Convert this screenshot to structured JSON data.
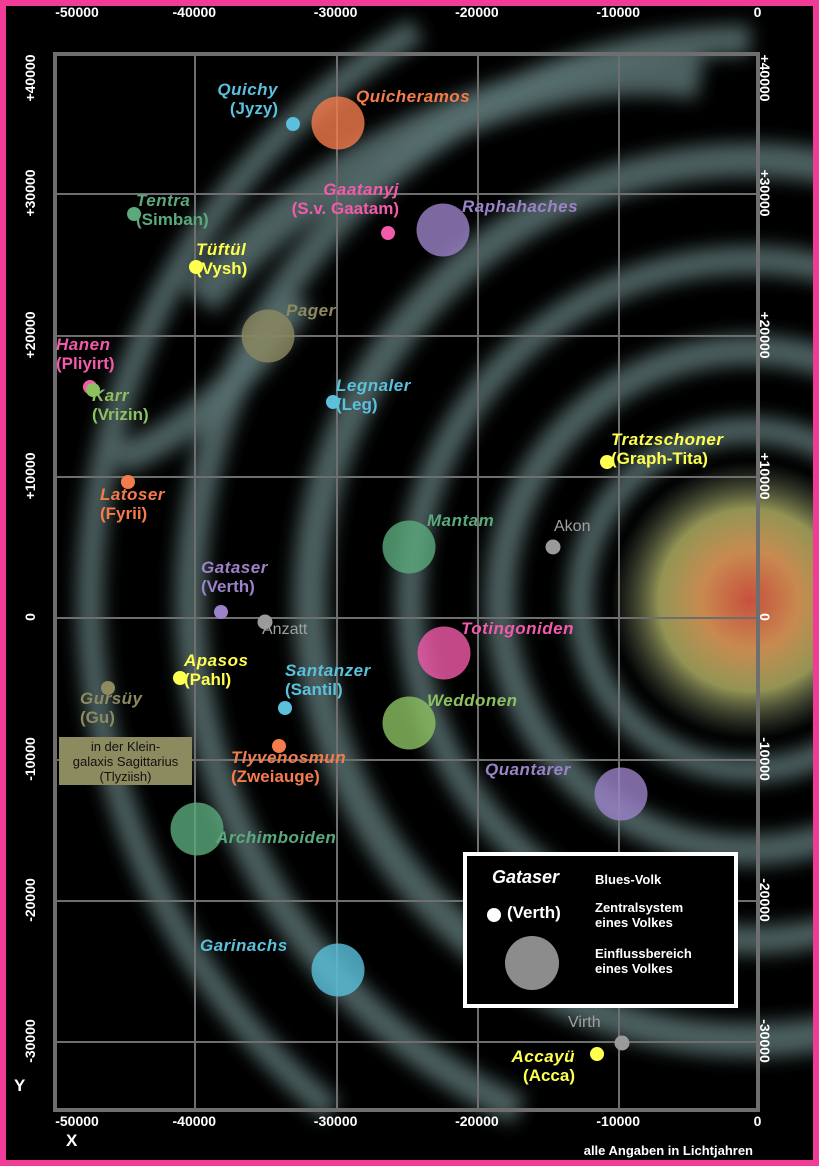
{
  "axes": {
    "x_ticks": [
      "-50000",
      "-40000",
      "-30000",
      "-20000",
      "-10000",
      "0"
    ],
    "y_ticks_left": [
      "+40000",
      "+30000",
      "+20000",
      "+10000",
      "0",
      "-10000",
      "-20000",
      "-30000"
    ],
    "y_ticks_right": [
      "+40000",
      "+30000",
      "+20000",
      "+10000",
      "0",
      "-10000",
      "-20000",
      "-30000"
    ],
    "x_letter": "X",
    "y_letter": "Y",
    "xlim": [
      -50000,
      0
    ],
    "ylim": [
      -35000,
      40000
    ],
    "unit_note": "alle Angaben in Lichtjahren"
  },
  "colors": {
    "border": "#f03c96",
    "cyan": "#5ac0dc",
    "orange": "#f47c4c",
    "green": "#5aaa7c",
    "pink": "#f25aaa",
    "purple": "#9c82c8",
    "yellow": "#ffff50",
    "olive": "#8c8a60",
    "lime": "#8cc060",
    "gray": "#9a9a9a"
  },
  "peoples": [
    {
      "name": "Quichy",
      "system": "(Jyzy)",
      "x": -33000,
      "y": 34900,
      "kind": "system",
      "color": "#5ac0dc"
    },
    {
      "name": "Quicheramos",
      "system": "",
      "x": -29800,
      "y": 35000,
      "kind": "influence",
      "color": "#f47c4c"
    },
    {
      "name": "Tentra",
      "system": "(Simban)",
      "x": -44300,
      "y": 28500,
      "kind": "system",
      "color": "#5aaa7c"
    },
    {
      "name": "Gaatanyj",
      "system": "(S.v. Gaatam)",
      "x": -26300,
      "y": 27200,
      "kind": "system",
      "color": "#f25aaa"
    },
    {
      "name": "Raphahaches",
      "system": "",
      "x": -22400,
      "y": 27400,
      "kind": "influence",
      "color": "#9c82c8"
    },
    {
      "name": "Tüftül",
      "system": "(Vysh)",
      "x": -39900,
      "y": 24800,
      "kind": "system",
      "color": "#ffff50"
    },
    {
      "name": "Pager",
      "system": "",
      "x": -34800,
      "y": 19900,
      "kind": "influence",
      "color": "#8c8a60"
    },
    {
      "name": "Hanen",
      "system": "(Pliyirt)",
      "x": -47400,
      "y": 16300,
      "kind": "system",
      "color": "#f25aaa"
    },
    {
      "name": "Karr",
      "system": "(Vrizin)",
      "x": -47200,
      "y": 16100,
      "kind": "system",
      "color": "#8cc060"
    },
    {
      "name": "Legnaler",
      "system": "(Leg)",
      "x": -30200,
      "y": 15200,
      "kind": "system",
      "color": "#5ac0dc"
    },
    {
      "name": "Tratzschoner",
      "system": "(Graph-Tita)",
      "x": -10800,
      "y": 11000,
      "kind": "system",
      "color": "#ffff50"
    },
    {
      "name": "Latoser",
      "system": "(Fyrii)",
      "x": -44700,
      "y": 9600,
      "kind": "system",
      "color": "#f47c4c"
    },
    {
      "name": "Mantam",
      "system": "",
      "x": -24800,
      "y": 5000,
      "kind": "influence",
      "color": "#5aaa7c"
    },
    {
      "name": "Gataser",
      "system": "(Verth)",
      "x": -38100,
      "y": 400,
      "kind": "system",
      "color": "#9c82c8"
    },
    {
      "name": "Totingoniden",
      "system": "",
      "x": -22300,
      "y": -2500,
      "kind": "influence",
      "color": "#f25aaa"
    },
    {
      "name": "Apasos",
      "system": "(Pahl)",
      "x": -41000,
      "y": -4300,
      "kind": "system",
      "color": "#ffff50"
    },
    {
      "name": "Gursüy",
      "system": "(Gu)",
      "x": -46100,
      "y": -5000,
      "kind": "system",
      "color": "#8c8a60"
    },
    {
      "name": "Santanzer",
      "system": "(Santil)",
      "x": -33600,
      "y": -6400,
      "kind": "system",
      "color": "#5ac0dc"
    },
    {
      "name": "Weddonen",
      "system": "",
      "x": -24800,
      "y": -7500,
      "kind": "influence",
      "color": "#8cc060"
    },
    {
      "name": "Tlyvenosmun",
      "system": "(Zweiauge)",
      "x": -34000,
      "y": -9100,
      "kind": "system",
      "color": "#f47c4c"
    },
    {
      "name": "Quantarer",
      "system": "",
      "x": -9800,
      "y": -12500,
      "kind": "influence",
      "color": "#9c82c8"
    },
    {
      "name": "Archimboiden",
      "system": "",
      "x": -39800,
      "y": -15000,
      "kind": "influence",
      "color": "#5aaa7c"
    },
    {
      "name": "Garinachs",
      "system": "",
      "x": -29800,
      "y": -25000,
      "kind": "influence",
      "color": "#5ac0dc"
    },
    {
      "name": "Accayü",
      "system": "(Acca)",
      "x": -11500,
      "y": -30900,
      "kind": "system",
      "color": "#ffff50"
    }
  ],
  "stars": [
    {
      "name": "Akon",
      "x": -14600,
      "y": 5000
    },
    {
      "name": "Anzatt",
      "x": -35000,
      "y": -350
    },
    {
      "name": "Virth",
      "x": -9700,
      "y": -30100
    }
  ],
  "klein_galaxis_note": [
    "in der Klein-",
    "galaxis Sagittarius",
    "(Tlyziish)"
  ],
  "legend": {
    "sample_name": "Gataser",
    "sample_name_desc": "Blues-Volk",
    "sample_system": "(Verth)",
    "sample_system_desc": [
      "Zentralsystem",
      "eines Volkes"
    ],
    "influence_desc": [
      "Einflussbereich",
      "eines Volkes"
    ]
  }
}
